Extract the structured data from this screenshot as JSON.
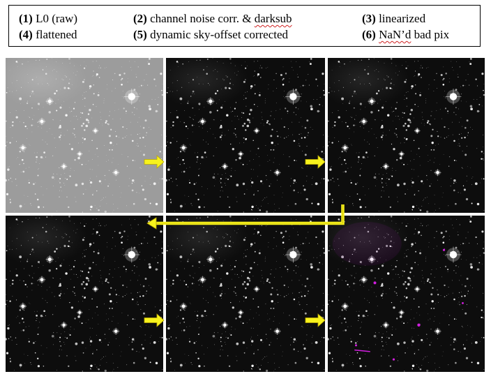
{
  "legend": {
    "items": [
      {
        "num": "(1)",
        "label": "L0 (raw)"
      },
      {
        "num": "(2)",
        "label_plain": "channel noise corr. & ",
        "label_flagged": "darksub"
      },
      {
        "num": "(3)",
        "label": "linearized"
      },
      {
        "num": "(4)",
        "label": "flattened"
      },
      {
        "num": "(5)",
        "label": "dynamic sky-offset corrected"
      },
      {
        "num": "(6)",
        "label_flagged": "NaN’d",
        "label_plain": " bad pix"
      }
    ]
  },
  "colors": {
    "arrow": "#f7f21d",
    "arrow_outline": "#b8a600",
    "raw_background": "#9c9c9c",
    "processed_background": "#0d0d0d",
    "bad_pixel": "#d21ee0",
    "star": "#ffffff"
  },
  "panels": [
    {
      "step": 1,
      "style": "raw"
    },
    {
      "step": 2,
      "style": "processed"
    },
    {
      "step": 3,
      "style": "processed"
    },
    {
      "step": 4,
      "style": "processed"
    },
    {
      "step": 5,
      "style": "processed"
    },
    {
      "step": 6,
      "style": "badpix"
    }
  ]
}
